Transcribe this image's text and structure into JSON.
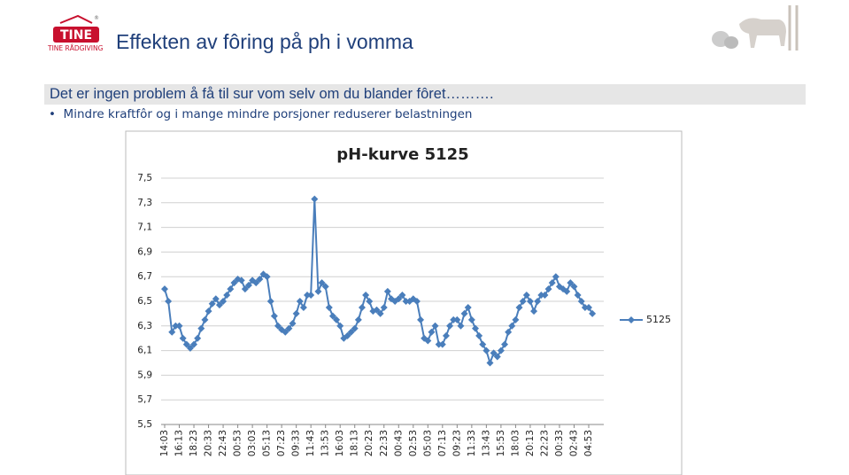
{
  "logo": {
    "brand": "TINE",
    "registered": "®",
    "subtitle": "TINE RÅDGIVING"
  },
  "header": {
    "title": "Effekten av fôring på ph i vomma"
  },
  "banner": {
    "text": "Det er ingen problem å få til sur vom selv om du blander fôret………."
  },
  "bullets": [
    "Mindre kraftfôr og i mange mindre porsjoner reduserer belastningen"
  ],
  "chart_data": {
    "type": "line",
    "title": "pH-kurve 5125",
    "categories": [
      "14:03",
      null,
      null,
      null,
      "16:13",
      null,
      null,
      null,
      "18:23",
      null,
      null,
      null,
      "20:33",
      null,
      null,
      null,
      "22:43",
      null,
      null,
      null,
      "00:53",
      null,
      null,
      null,
      "03:03",
      null,
      null,
      null,
      "05:13",
      null,
      null,
      null,
      "07:23",
      null,
      null,
      null,
      "09:33",
      null,
      null,
      null,
      "11:43",
      null,
      null,
      null,
      "13:53",
      null,
      null,
      null,
      "16:03",
      null,
      null,
      null,
      "18:13",
      null,
      null,
      null,
      "20:23",
      null,
      null,
      null,
      "22:33",
      null,
      null,
      null,
      "00:43",
      null,
      null,
      null,
      "02:53",
      null,
      null,
      null,
      "05:03",
      null,
      null,
      null,
      "07:13",
      null,
      null,
      null,
      "09:23",
      null,
      null,
      null,
      "11:33",
      null,
      null,
      null,
      "13:43",
      null,
      null,
      null,
      "15:53",
      null,
      null,
      null,
      "18:03",
      null,
      null,
      null,
      "20:13",
      null,
      null,
      null,
      "22:23",
      null,
      null,
      null,
      "00:33",
      null,
      null,
      null,
      "02:43",
      null,
      null,
      null,
      "04:53",
      null
    ],
    "series": [
      {
        "name": "5125",
        "color": "#4a7ebb",
        "values": [
          6.6,
          6.5,
          6.25,
          6.3,
          6.3,
          6.2,
          6.15,
          6.12,
          6.15,
          6.2,
          6.28,
          6.35,
          6.42,
          6.48,
          6.52,
          6.47,
          6.5,
          6.55,
          6.6,
          6.65,
          6.68,
          6.67,
          6.6,
          6.63,
          6.67,
          6.65,
          6.68,
          6.72,
          6.7,
          6.5,
          6.38,
          6.3,
          6.27,
          6.25,
          6.28,
          6.32,
          6.4,
          6.5,
          6.45,
          6.55,
          6.55,
          7.33,
          6.58,
          6.65,
          6.62,
          6.45,
          6.38,
          6.35,
          6.3,
          6.2,
          6.22,
          6.25,
          6.28,
          6.35,
          6.45,
          6.55,
          6.5,
          6.42,
          6.43,
          6.4,
          6.45,
          6.58,
          6.52,
          6.5,
          6.52,
          6.55,
          6.5,
          6.5,
          6.52,
          6.5,
          6.35,
          6.2,
          6.18,
          6.25,
          6.3,
          6.15,
          6.15,
          6.22,
          6.3,
          6.35,
          6.35,
          6.3,
          6.4,
          6.45,
          6.35,
          6.28,
          6.22,
          6.15,
          6.1,
          6.0,
          6.08,
          6.05,
          6.1,
          6.15,
          6.25,
          6.3,
          6.35,
          6.45,
          6.5,
          6.55,
          6.5,
          6.42,
          6.5,
          6.55,
          6.55,
          6.6,
          6.65,
          6.7,
          6.62,
          6.6,
          6.58,
          6.65,
          6.62,
          6.55,
          6.5,
          6.45,
          6.45,
          6.4
        ]
      }
    ],
    "ylim": [
      5.5,
      7.5
    ],
    "yticks": [
      {
        "value": 5.5,
        "label": "5,5"
      },
      {
        "value": 5.7,
        "label": "5,7"
      },
      {
        "value": 5.9,
        "label": "5,9"
      },
      {
        "value": 6.1,
        "label": "6,1"
      },
      {
        "value": 6.3,
        "label": "6,3"
      },
      {
        "value": 6.5,
        "label": "6,5"
      },
      {
        "value": 6.7,
        "label": "6,7"
      },
      {
        "value": 6.9,
        "label": "6,9"
      },
      {
        "value": 7.1,
        "label": "7,1"
      },
      {
        "value": 7.3,
        "label": "7,3"
      },
      {
        "value": 7.5,
        "label": "7,5"
      }
    ],
    "grid": true,
    "legend": "right"
  }
}
